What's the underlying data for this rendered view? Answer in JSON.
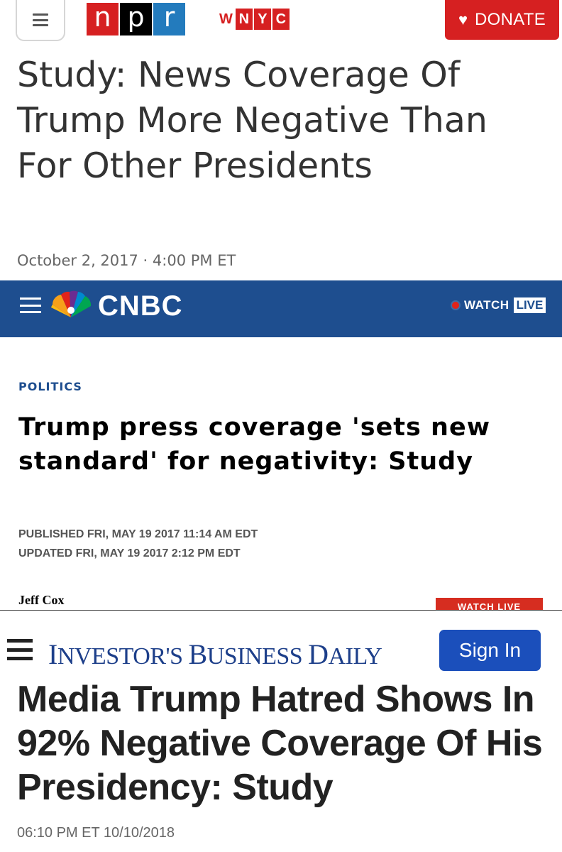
{
  "npr": {
    "logo": [
      "n",
      "p",
      "r"
    ],
    "station": [
      "W",
      "N",
      "Y",
      "C"
    ],
    "donate_label": "DONATE",
    "headline": "Study: News Coverage Of Trump More Negative Than For Other Presidents",
    "dateline": "October 2, 2017 · 4:00 PM ET",
    "colors": {
      "red": "#d62021",
      "black": "#000000",
      "blue": "#237bbd"
    }
  },
  "cnbc": {
    "logo": "CNBC",
    "watch_label": "WATCH",
    "live_label": "LIVE",
    "kicker": "POLITICS",
    "headline": "Trump press coverage 'sets new standard' for negativity: Study",
    "published": "PUBLISHED FRI, MAY 19 2017 11:14 AM EDT",
    "updated": "UPDATED FRI, MAY 19 2017 2:12 PM EDT",
    "author": "Jeff Cox",
    "watch_live_tab": "WATCH LIVE",
    "colors": {
      "bar": "#1e4e8f"
    }
  },
  "ibd": {
    "logo_parts": [
      "I",
      "NVESTOR'S ",
      "B",
      "USINESS ",
      "D",
      "AILY"
    ],
    "signin_label": "Sign In",
    "headline": "Media Trump Hatred Shows In 92% Negative Coverage Of His Presidency: Study",
    "dateline": "06:10 PM ET 10/10/2018",
    "colors": {
      "brand": "#1d3f8a",
      "button": "#1b4fbb"
    }
  }
}
